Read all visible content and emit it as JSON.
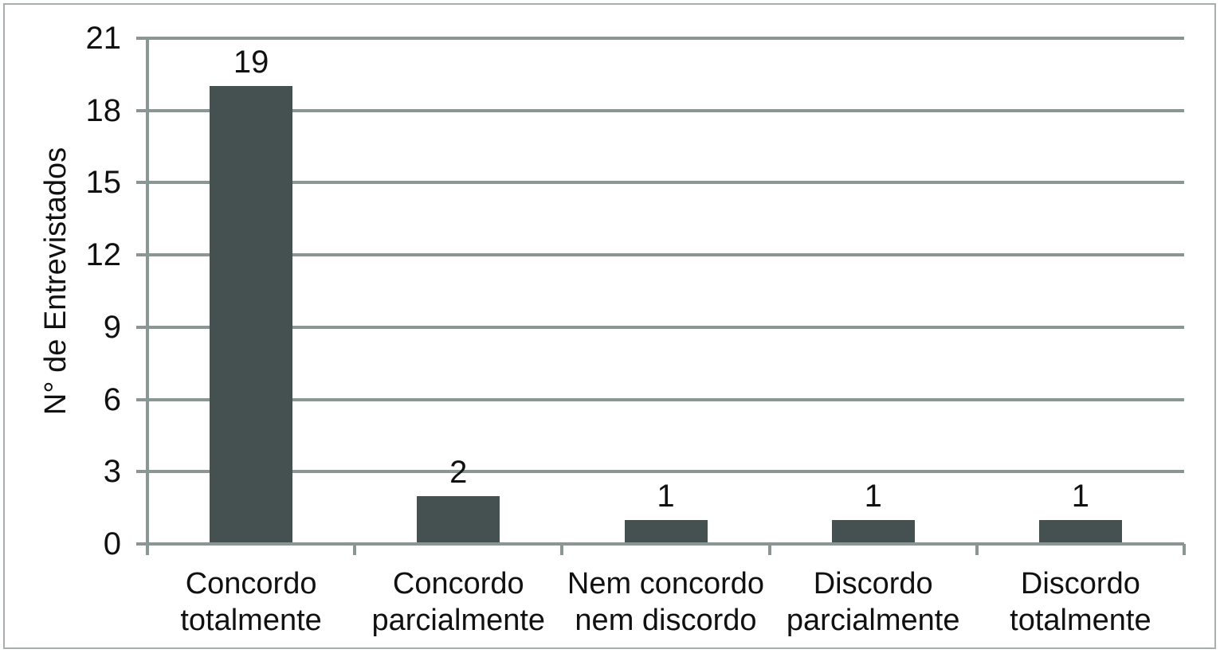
{
  "chart_data": {
    "type": "bar",
    "title": "",
    "xlabel": "",
    "ylabel": "N° de Entrevistados",
    "categories": [
      "Concordo\ntotalmente",
      "Concordo\nparcialmente",
      "Nem concordo\nnem discordo",
      "Discordo\nparcialmente",
      "Discordo\ntotalmente"
    ],
    "values": [
      19,
      2,
      1,
      1,
      1
    ],
    "value_labels": [
      "19",
      "2",
      "1",
      "1",
      "1"
    ],
    "yticks": [
      0,
      3,
      6,
      9,
      12,
      15,
      18,
      21
    ],
    "ytick_labels": [
      "0",
      "3",
      "6",
      "9",
      "12",
      "15",
      "18",
      "21"
    ],
    "ylim": [
      0,
      21
    ],
    "grid": true,
    "legend": false,
    "bar_color": "#445150",
    "grid_color": "#8a9694",
    "axis_color": "#8a9694",
    "border_color": "#a5afad",
    "text_color": "#111111",
    "background_color": "#ffffff"
  }
}
